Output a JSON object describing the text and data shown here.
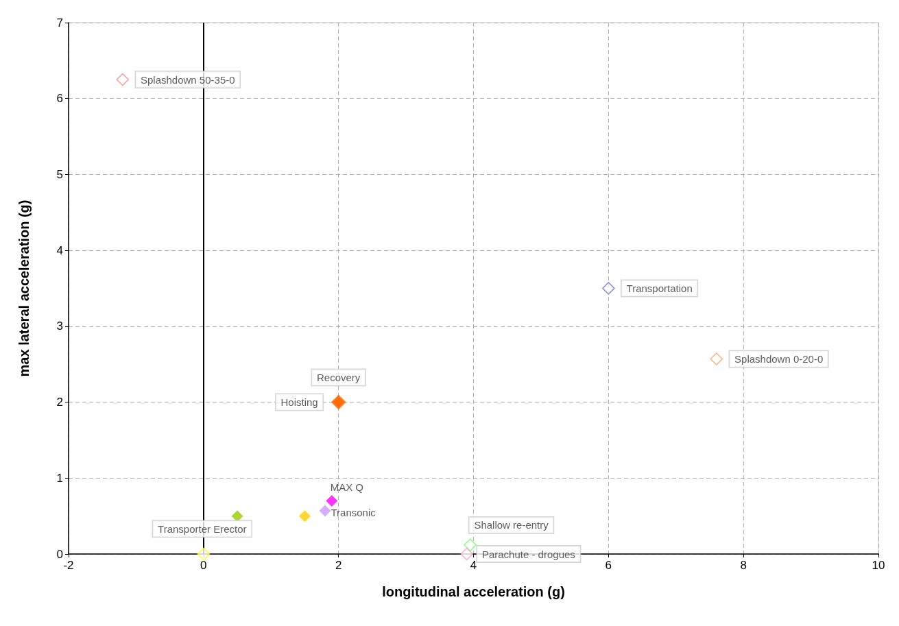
{
  "chart_data": {
    "type": "scatter",
    "xlabel": "longitudinal acceleration (g)",
    "ylabel": "max lateral acceleration (g)",
    "xlim": [
      -2,
      10
    ],
    "xticks": [
      -2,
      0,
      2,
      4,
      6,
      8,
      10
    ],
    "ylim": [
      0,
      7
    ],
    "yticks": [
      0,
      1,
      2,
      3,
      4,
      5,
      6,
      7
    ],
    "grid": true,
    "legend": false,
    "marker": "diamond",
    "ref_lines": [
      {
        "axis": "x",
        "value": 0,
        "color": "#000000"
      }
    ],
    "series": [
      {
        "name": "Splashdown 50-35-0",
        "color": "#ff8080",
        "x": [
          -1.2
        ],
        "values": [
          6.25
        ]
      },
      {
        "name": "Transportation",
        "color": "#6666cc",
        "x": [
          6
        ],
        "values": [
          3.5
        ]
      },
      {
        "name": "Splashdown 0-20-0",
        "color": "#ff9966",
        "x": [
          7.6
        ],
        "values": [
          2.57
        ]
      },
      {
        "name": "Hoisting",
        "color": "#ff6600",
        "x": [
          2
        ],
        "values": [
          2
        ]
      },
      {
        "name": "Recovery",
        "color": "#ff6600",
        "x": [
          2
        ],
        "values": [
          2
        ]
      },
      {
        "name": "MAX Q",
        "color": "#ff00ff",
        "x": [
          1.9
        ],
        "values": [
          0.7
        ]
      },
      {
        "name": "Transonic",
        "color": "#cc99ff",
        "x": [
          1.8
        ],
        "values": [
          0.57
        ]
      },
      {
        "color": "#99cc00",
        "x": [
          0.5
        ],
        "values": [
          0.5
        ]
      },
      {
        "color": "#ffcc00",
        "x": [
          1.5
        ],
        "values": [
          0.5
        ]
      },
      {
        "name": "Transporter Erector",
        "color": "#ffff00",
        "x": [
          0
        ],
        "values": [
          0
        ]
      },
      {
        "name": "Shallow re-entry",
        "color": "#66ff66",
        "x": [
          3.95
        ],
        "values": [
          0.12
        ]
      },
      {
        "name": "Parachute - drogues",
        "color": "#ff99cc",
        "x": [
          3.9
        ],
        "values": [
          0
        ]
      }
    ]
  }
}
